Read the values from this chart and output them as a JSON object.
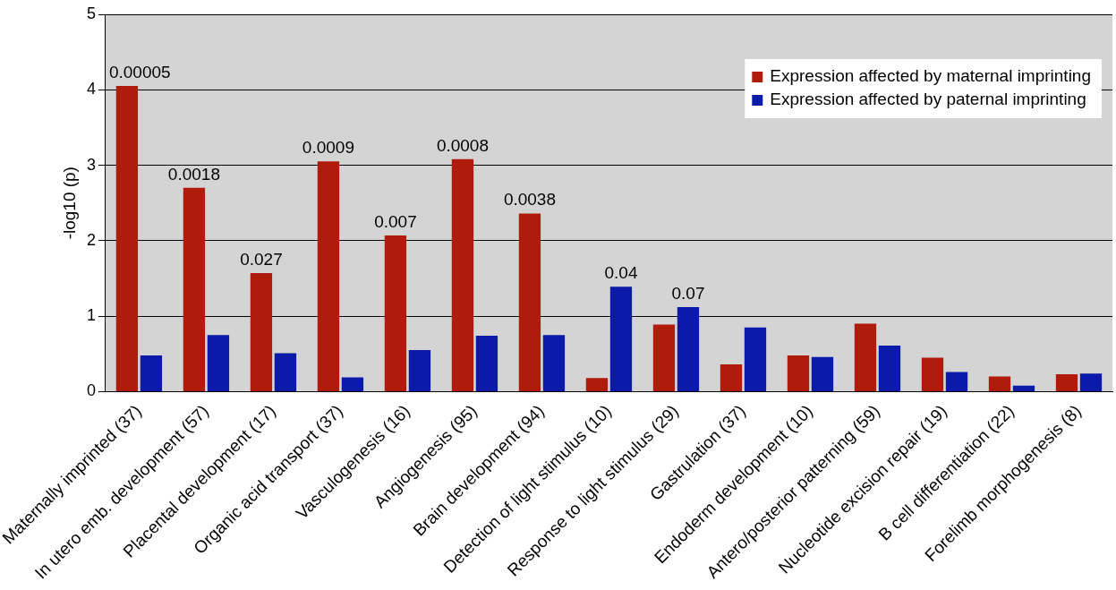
{
  "chart_data": {
    "type": "bar",
    "ylabel": "-log10 (p)",
    "categories": [
      "Maternally imprinted (37)",
      "In utero emb. development (57)",
      "Placental development (17)",
      "Organic acid transport (37)",
      "Vasculogenesis (16)",
      "Angiogenesis (95)",
      "Brain development (94)",
      "Detection of light stimulus (10)",
      "Response to light stimulus (29)",
      "Gastrulation (37)",
      "Endoderm development (10)",
      "Antero/posterior patterning (59)",
      "Nucleotide excision repair (19)",
      "B cell differentiation (22)",
      "Forelimb morphogenesis (8)"
    ],
    "series": [
      {
        "name": "Expression affected by maternal imprinting",
        "color": "#b01c0c",
        "values": [
          4.05,
          2.7,
          1.57,
          3.05,
          2.07,
          3.08,
          2.36,
          0.18,
          0.89,
          0.36,
          0.48,
          0.9,
          0.45,
          0.2,
          0.23
        ]
      },
      {
        "name": "Expression affected by paternal imprinting",
        "color": "#0b1aa8",
        "values": [
          0.48,
          0.75,
          0.51,
          0.19,
          0.55,
          0.74,
          0.75,
          1.39,
          1.12,
          0.85,
          0.46,
          0.61,
          0.26,
          0.08,
          0.24
        ]
      }
    ],
    "ylim": [
      0,
      5
    ],
    "yticks": [
      0,
      1,
      2,
      3,
      4,
      5
    ],
    "grid": "y",
    "legend": "top right",
    "annotations": [
      {
        "text": "0.00005",
        "x": "Maternally imprinted (37)",
        "y": 4.05
      },
      {
        "text": "0.0018",
        "x": "In utero emb. development (57)",
        "y": 2.7
      },
      {
        "text": "0.027",
        "x": "Placental development (17)",
        "y": 1.57
      },
      {
        "text": "0.0009",
        "x": "Organic acid transport (37)",
        "y": 3.05
      },
      {
        "text": "0.007",
        "x": "Vasculogenesis (16)",
        "y": 2.07
      },
      {
        "text": "0.0008",
        "x": "Angiogenesis (95)",
        "y": 3.08
      },
      {
        "text": "0.0038",
        "x": "Brain development (94)",
        "y": 2.36
      },
      {
        "text": "0.04",
        "x": "Detection of light stimulus (10)",
        "y": 1.39
      },
      {
        "text": "0.07",
        "x": "Response to light stimulus (29)",
        "y": 1.12
      }
    ]
  }
}
